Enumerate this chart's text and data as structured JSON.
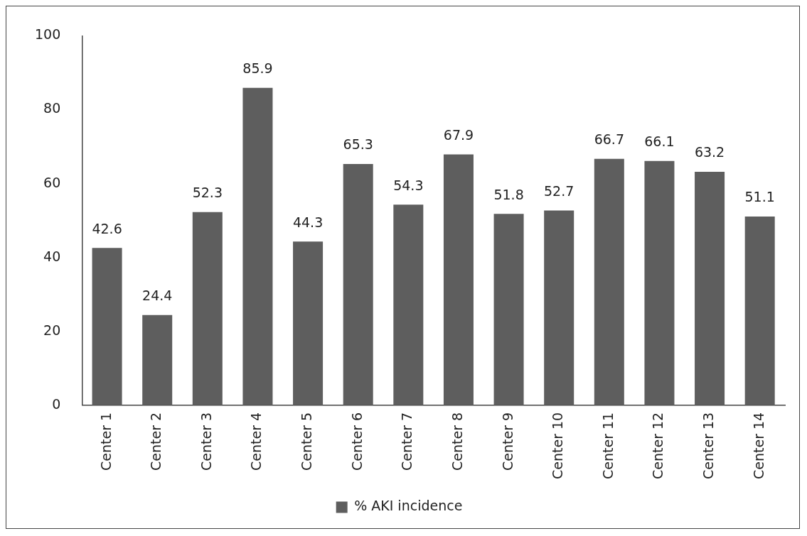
{
  "chart_data": {
    "type": "bar",
    "categories": [
      "Center 1",
      "Center 2",
      "Center 3",
      "Center 4",
      "Center 5",
      "Center 6",
      "Center 7",
      "Center 8",
      "Center 9",
      "Center 10",
      "Center 11",
      "Center 12",
      "Center 13",
      "Center 14"
    ],
    "series": [
      {
        "name": "% AKI incidence",
        "color": "#5e5e5e",
        "values": [
          42.6,
          24.4,
          52.3,
          85.9,
          44.3,
          65.3,
          54.3,
          67.9,
          51.8,
          52.7,
          66.7,
          66.1,
          63.2,
          51.1
        ]
      }
    ],
    "ylim": [
      0,
      100
    ],
    "yticks": [
      0,
      20,
      40,
      60,
      80,
      100
    ],
    "grid": false,
    "legend": "bottom",
    "data_labels": true
  }
}
